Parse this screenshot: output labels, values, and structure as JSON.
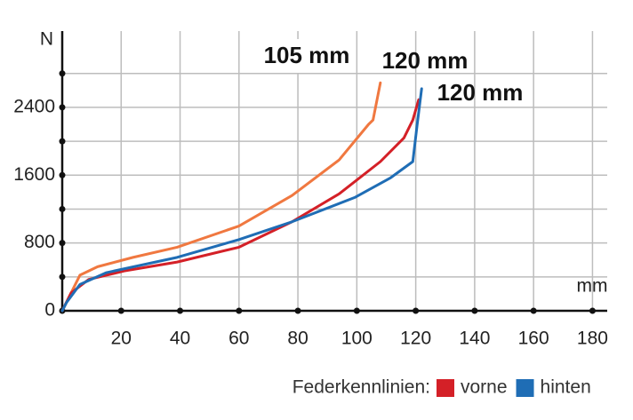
{
  "chart_data": {
    "type": "line",
    "x_label": "mm",
    "y_label": "N",
    "xlim": [
      0,
      185
    ],
    "ylim": [
      0,
      3300
    ],
    "xticks": [
      20,
      40,
      60,
      80,
      100,
      120,
      140,
      160,
      180
    ],
    "yticks": [
      0,
      800,
      1600,
      2400
    ],
    "yminorticks": [
      400,
      1200,
      2000,
      2800
    ],
    "grid": true,
    "legend_title": "Federkennlinien:",
    "series": [
      {
        "color": "#f07840",
        "x": [
          0,
          3,
          6,
          12,
          24,
          39,
          60,
          78,
          94,
          104,
          105.5,
          108
        ],
        "values": [
          0,
          210,
          420,
          520,
          630,
          750,
          1000,
          1360,
          1780,
          2200,
          2250,
          2690
        ]
      },
      {
        "name": "vorne",
        "color": "#d42027",
        "x": [
          0,
          3,
          9,
          21,
          39,
          60,
          78,
          94,
          108,
          116,
          119,
          121
        ],
        "values": [
          0,
          210,
          370,
          470,
          575,
          750,
          1050,
          1380,
          1760,
          2040,
          2250,
          2490
        ]
      },
      {
        "name": "hinten",
        "color": "#1f6db5",
        "x": [
          0,
          1.5,
          6,
          15,
          39,
          60,
          78,
          99.5,
          111.5,
          119,
          120.5,
          122
        ],
        "values": [
          0,
          100,
          310,
          450,
          630,
          840,
          1050,
          1340,
          1570,
          1760,
          2200,
          2620
        ]
      }
    ],
    "annotations": [
      "105 mm",
      "120 mm",
      "120 mm"
    ]
  }
}
